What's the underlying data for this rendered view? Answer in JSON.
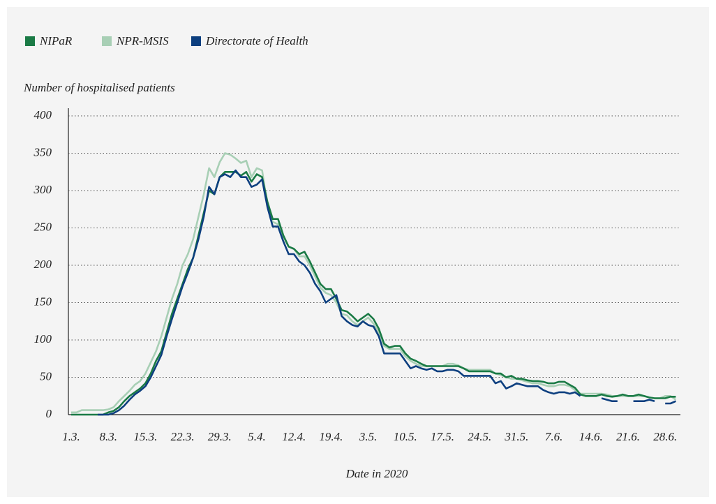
{
  "chart_data": {
    "type": "line",
    "y_axis_label": "Number of hospitalised patients",
    "x_axis_label": "Date in 2020",
    "categories": [
      "1.3.",
      null,
      null,
      null,
      null,
      null,
      null,
      "8.3.",
      null,
      null,
      null,
      null,
      null,
      null,
      "15.3.",
      null,
      null,
      null,
      null,
      null,
      null,
      "22.3.",
      null,
      null,
      null,
      null,
      null,
      null,
      "29.3.",
      null,
      null,
      null,
      null,
      null,
      null,
      "5.4.",
      null,
      null,
      null,
      null,
      null,
      null,
      "12.4.",
      null,
      null,
      null,
      null,
      null,
      null,
      "19.4.",
      null,
      null,
      null,
      null,
      null,
      null,
      "3.5.",
      null,
      null,
      null,
      null,
      null,
      null,
      "10.5.",
      null,
      null,
      null,
      null,
      null,
      null,
      "17.5.",
      null,
      null,
      null,
      null,
      null,
      null,
      "24.5.",
      null,
      null,
      null,
      null,
      null,
      null,
      "31.5.",
      null,
      null,
      null,
      null,
      null,
      null,
      "7.6.",
      null,
      null,
      null,
      null,
      null,
      null,
      "14.6.",
      null,
      null,
      null,
      null,
      null,
      null,
      "21.6.",
      null,
      null,
      null,
      null,
      null,
      null,
      "28.6.",
      null,
      null
    ],
    "series": [
      {
        "name": "NIPaR",
        "color": "#1a7a45",
        "values": [
          0,
          0,
          0,
          0,
          0,
          0,
          0,
          3,
          5,
          10,
          18,
          25,
          30,
          35,
          42,
          55,
          72,
          85,
          110,
          135,
          155,
          175,
          195,
          210,
          240,
          270,
          300,
          295,
          318,
          325,
          325,
          325,
          320,
          325,
          312,
          322,
          318,
          285,
          262,
          262,
          240,
          225,
          222,
          215,
          218,
          205,
          190,
          175,
          168,
          168,
          155,
          140,
          138,
          132,
          125,
          130,
          135,
          128,
          115,
          95,
          90,
          92,
          92,
          82,
          75,
          72,
          68,
          65,
          65,
          65,
          65,
          65,
          65,
          65,
          62,
          58,
          58,
          58,
          58,
          58,
          55,
          55,
          50,
          52,
          48,
          48,
          46,
          45,
          45,
          44,
          42,
          42,
          44,
          44,
          40,
          36,
          27,
          25,
          25,
          25,
          27,
          25,
          24,
          25,
          27,
          25,
          25,
          27,
          25,
          23,
          22,
          22,
          22,
          24,
          24
        ]
      },
      {
        "name": "NPR-MSIS",
        "color": "#a8cfb5",
        "values": [
          3,
          3,
          6,
          6,
          6,
          6,
          6,
          7,
          10,
          18,
          25,
          32,
          40,
          45,
          55,
          70,
          85,
          105,
          130,
          155,
          175,
          200,
          215,
          235,
          265,
          295,
          330,
          318,
          338,
          350,
          348,
          343,
          337,
          340,
          318,
          330,
          327,
          280,
          258,
          255,
          238,
          225,
          222,
          212,
          212,
          200,
          185,
          170,
          163,
          160,
          150,
          135,
          133,
          125,
          120,
          125,
          130,
          122,
          110,
          92,
          88,
          88,
          88,
          78,
          72,
          68,
          65,
          65,
          65,
          65,
          65,
          68,
          68,
          66,
          62,
          60,
          60,
          60,
          60,
          60,
          55,
          53,
          50,
          48,
          48,
          46,
          44,
          42,
          42,
          40,
          38,
          38,
          40,
          40,
          38,
          33,
          28,
          28,
          28,
          28,
          28,
          27,
          25,
          25,
          25,
          25,
          25,
          25,
          25,
          23,
          22,
          22,
          25,
          25,
          20
        ]
      },
      {
        "name": "Directorate of Health",
        "color": "#0d3f7f",
        "values": [
          null,
          null,
          null,
          null,
          null,
          0,
          0,
          0,
          2,
          6,
          12,
          20,
          27,
          32,
          38,
          50,
          65,
          80,
          105,
          128,
          150,
          172,
          190,
          210,
          235,
          265,
          305,
          295,
          318,
          322,
          318,
          327,
          318,
          318,
          305,
          308,
          315,
          278,
          252,
          252,
          232,
          215,
          215,
          205,
          200,
          190,
          175,
          165,
          150,
          155,
          160,
          132,
          125,
          120,
          118,
          125,
          120,
          118,
          105,
          82,
          82,
          82,
          82,
          72,
          62,
          65,
          62,
          60,
          62,
          58,
          58,
          60,
          60,
          58,
          52,
          52,
          52,
          52,
          52,
          52,
          42,
          45,
          35,
          38,
          42,
          40,
          38,
          38,
          38,
          33,
          30,
          28,
          30,
          30,
          28,
          30,
          25,
          null,
          null,
          null,
          22,
          20,
          18,
          18,
          null,
          null,
          18,
          18,
          18,
          20,
          18,
          null,
          15,
          15,
          18
        ]
      }
    ],
    "ylim": [
      0,
      400
    ],
    "yticks": [
      0,
      50,
      100,
      150,
      200,
      250,
      300,
      350,
      400
    ],
    "grid": true
  }
}
